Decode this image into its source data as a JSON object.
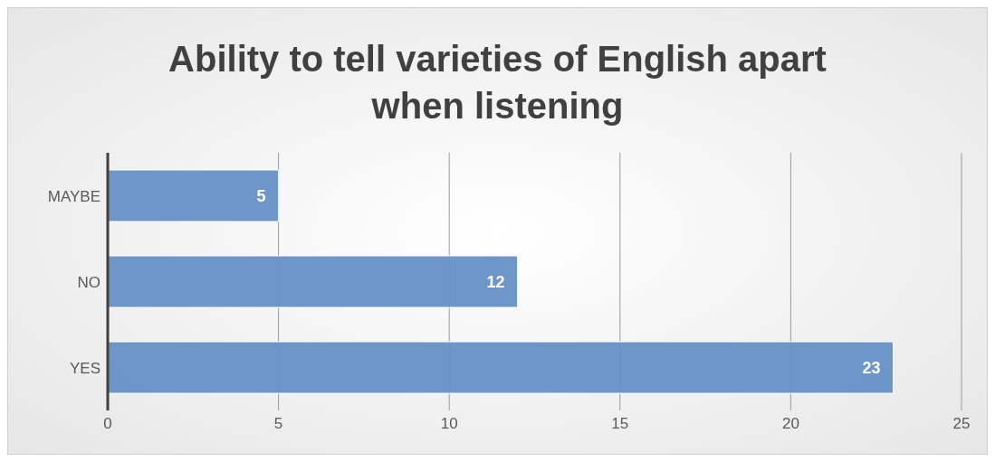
{
  "chart_data": {
    "type": "bar",
    "orientation": "horizontal",
    "title": "Ability to tell varieties of English apart when listening",
    "categories": [
      "MAYBE",
      "NO",
      "YES"
    ],
    "values": [
      5,
      12,
      23
    ],
    "color": "#6790c6",
    "xlim": [
      0,
      25
    ],
    "xticks": [
      0,
      5,
      10,
      15,
      20,
      25
    ],
    "grid": "x",
    "data_labels": true
  }
}
